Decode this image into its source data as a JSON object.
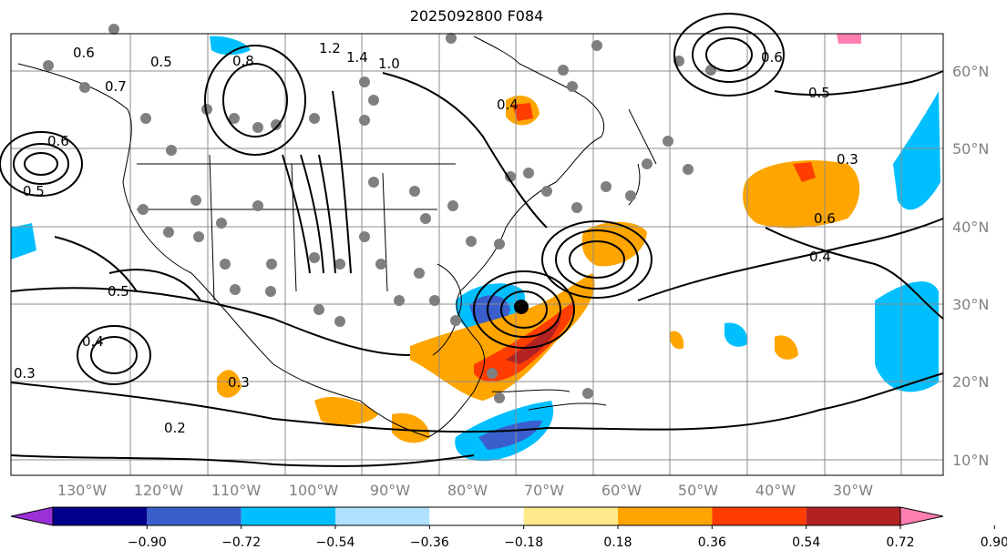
{
  "title": "2025092800 F084",
  "map": {
    "lon_ticks": [
      "130°W",
      "120°W",
      "110°W",
      "100°W",
      "90°W",
      "80°W",
      "70°W",
      "60°W",
      "50°W",
      "40°W",
      "30°W"
    ],
    "lat_ticks": [
      "60°N",
      "50°N",
      "40°N",
      "30°N",
      "20°N",
      "10°N"
    ]
  },
  "contour_labels": [
    "0.6",
    "0.5",
    "0.7",
    "1.2",
    "1.4",
    "0.8",
    "0.4",
    "0.3",
    "0.2",
    "0.6",
    "0.5",
    "0.4",
    "0.3",
    "0.3",
    "0.5",
    "0.4",
    "0.6",
    "1.0",
    "0.5",
    "0.6"
  ],
  "colorbar": {
    "levels": [
      "−0.90",
      "−0.72",
      "−0.54",
      "−0.36",
      "−0.18",
      "0.18",
      "0.36",
      "0.54",
      "0.72",
      "0.90"
    ],
    "colors": [
      "#9b30d9",
      "#00008b",
      "#3a5fcd",
      "#00bfff",
      "#b0e2ff",
      "#ffffff",
      "#ffe98a",
      "#ffa500",
      "#ff3d00",
      "#b22222",
      "#ff7fb0"
    ]
  }
}
